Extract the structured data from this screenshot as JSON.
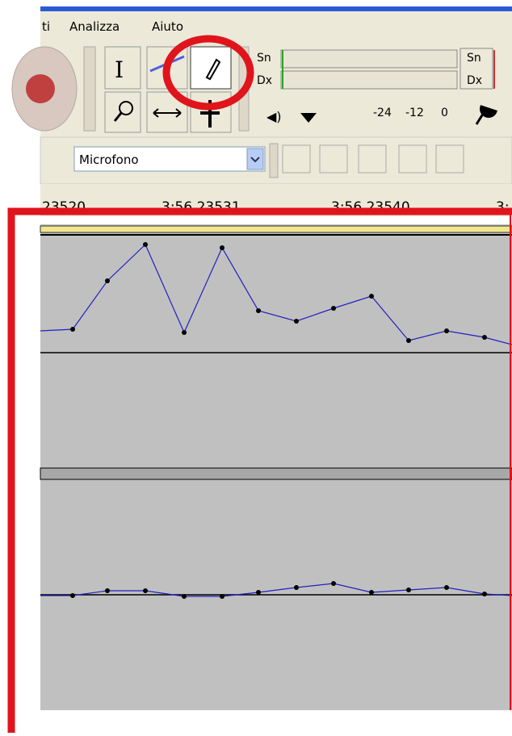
{
  "menu": {
    "items": [
      "ti",
      "Analizza",
      "Aiuto"
    ]
  },
  "meter": {
    "left_top": "Sn",
    "left_bottom": "Dx",
    "right_top": "Sn",
    "right_bottom": "Dx",
    "scale": [
      "-24",
      "-12",
      "0"
    ]
  },
  "device": {
    "input": "Microfono"
  },
  "timeline": {
    "labels": [
      "23520",
      "3:56 23531",
      "3:56 23540",
      "3:"
    ]
  }
}
